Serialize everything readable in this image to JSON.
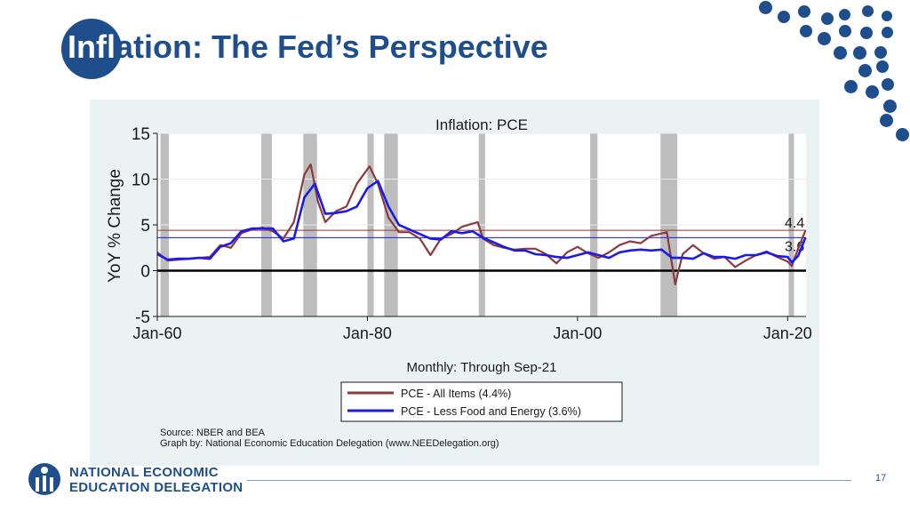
{
  "slide": {
    "title_part1": "Infl",
    "title_part2": "ation: The Fed’s Perspective",
    "page_number": "17",
    "logo_line1": "NATIONAL ECONOMIC",
    "logo_line2": "EDUCATION DELEGATION"
  },
  "colors": {
    "brand": "#1f4e8c",
    "pce_all": "#8b3a3e",
    "pce_core": "#1a1aeb",
    "recession": "#bdbdbd"
  },
  "chart_data": {
    "type": "line",
    "title": "Inflation: PCE",
    "ylabel": "YoY % Change",
    "xlabel": "Monthly: Through Sep-21",
    "ylim": [
      -5,
      15
    ],
    "xlim": [
      1960,
      2021.75
    ],
    "yticks": [
      15,
      10,
      5,
      0,
      -5
    ],
    "xticks": [
      {
        "value": 1960,
        "label": "Jan-60"
      },
      {
        "value": 1980,
        "label": "Jan-80"
      },
      {
        "value": 2000,
        "label": "Jan-00"
      },
      {
        "value": 2020,
        "label": "Jan-20"
      }
    ],
    "recessions": [
      [
        1960.3,
        1961.1
      ],
      [
        1969.9,
        1970.9
      ],
      [
        1973.9,
        1975.2
      ],
      [
        1980.0,
        1980.6
      ],
      [
        1981.6,
        1982.9
      ],
      [
        1990.6,
        1991.2
      ],
      [
        2001.2,
        2001.9
      ],
      [
        2007.9,
        2009.5
      ],
      [
        2020.1,
        2020.4
      ]
    ],
    "reference_lines": [
      {
        "value": 4.4,
        "label": "4.4",
        "series": "PCE - All Items"
      },
      {
        "value": 3.6,
        "label": "3.6",
        "series": "PCE - Less Food and Energy"
      }
    ],
    "series": [
      {
        "name": "PCE - All Items (4.4%)",
        "x": [
          1960,
          1961,
          1962,
          1963,
          1964,
          1965,
          1966,
          1967,
          1968,
          1969,
          1970,
          1971,
          1972,
          1973,
          1974,
          1974.6,
          1975.3,
          1976,
          1977,
          1978,
          1979,
          1980.2,
          1981,
          1982,
          1983,
          1984,
          1985,
          1986,
          1987,
          1988,
          1989,
          1990.5,
          1991,
          1992,
          1993,
          1994,
          1995,
          1996,
          1997,
          1998,
          1999,
          2000,
          2001,
          2002,
          2003,
          2004,
          2005,
          2006,
          2007,
          2008.5,
          2009.3,
          2010,
          2011,
          2012,
          2013,
          2014,
          2015,
          2016,
          2017,
          2018,
          2019,
          2020,
          2020.4,
          2021,
          2021.7
        ],
        "values": [
          2.0,
          1.1,
          1.2,
          1.3,
          1.4,
          1.5,
          2.8,
          2.5,
          4.1,
          4.5,
          4.7,
          4.3,
          3.5,
          5.3,
          10.5,
          11.6,
          7.5,
          5.3,
          6.5,
          7.0,
          9.5,
          11.4,
          9.5,
          5.8,
          4.2,
          4.2,
          3.5,
          1.7,
          3.5,
          4.0,
          4.8,
          5.3,
          3.5,
          2.8,
          2.5,
          2.3,
          2.4,
          2.4,
          1.8,
          0.8,
          2.0,
          2.6,
          1.9,
          1.4,
          2.0,
          2.8,
          3.2,
          3.0,
          3.8,
          4.2,
          -1.5,
          1.8,
          2.8,
          1.9,
          1.3,
          1.5,
          0.4,
          1.1,
          1.7,
          2.1,
          1.5,
          1.0,
          0.5,
          2.4,
          4.4
        ]
      },
      {
        "name": "PCE - Less Food and Energy (3.6%)",
        "x": [
          1960,
          1961,
          1962,
          1963,
          1964,
          1965,
          1966,
          1967,
          1968,
          1969,
          1970,
          1971,
          1972,
          1973,
          1974,
          1975,
          1976,
          1977,
          1978,
          1979,
          1980,
          1981,
          1982,
          1983,
          1984,
          1985,
          1986,
          1987,
          1988,
          1989,
          1990,
          1991,
          1992,
          1993,
          1994,
          1995,
          1996,
          1997,
          1998,
          1999,
          2000,
          2001,
          2002,
          2003,
          2004,
          2005,
          2006,
          2007,
          2008,
          2009,
          2010,
          2011,
          2012,
          2013,
          2014,
          2015,
          2016,
          2017,
          2018,
          2019,
          2020,
          2020.4,
          2021,
          2021.7
        ],
        "values": [
          1.8,
          1.2,
          1.3,
          1.3,
          1.4,
          1.3,
          2.6,
          3.0,
          4.3,
          4.6,
          4.6,
          4.6,
          3.2,
          3.5,
          8.0,
          9.5,
          6.2,
          6.3,
          6.5,
          7.0,
          9.0,
          9.8,
          7.0,
          5.0,
          4.5,
          4.0,
          3.5,
          3.4,
          4.3,
          4.1,
          4.3,
          3.6,
          3.1,
          2.6,
          2.2,
          2.2,
          1.8,
          1.7,
          1.5,
          1.4,
          1.7,
          2.0,
          1.7,
          1.4,
          2.0,
          2.2,
          2.3,
          2.2,
          2.3,
          1.4,
          1.4,
          1.3,
          1.9,
          1.5,
          1.5,
          1.3,
          1.7,
          1.7,
          2.0,
          1.6,
          1.5,
          0.9,
          1.6,
          3.6
        ]
      }
    ],
    "legend": {
      "position": "bottom",
      "labels": [
        "PCE - All Items (4.4%)",
        "PCE - Less Food and Energy (3.6%)"
      ]
    },
    "notes": [
      "Source: NBER and BEA",
      "Graph by: National Economic Education Delegation (www.NEEDelegation.org)"
    ]
  }
}
